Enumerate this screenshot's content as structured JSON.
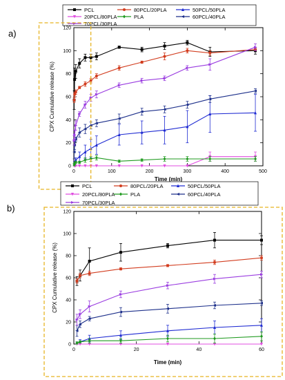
{
  "panel_letters": [
    "a)",
    "b)"
  ],
  "colors": {
    "highlight_box": "#e6b422",
    "PCL": "#000000",
    "80PCL/20PLA": "#d23c1e",
    "50PCL/50PLA": "#1e2ad2",
    "20PCL/80PLA": "#e04ce0",
    "PLA": "#1f9a1f",
    "60PCL/40PLA": "#1c2f8a",
    "70PCL/30PLA": "#9a3ce0"
  },
  "chart_data": [
    {
      "type": "line",
      "panel": "a)",
      "xlabel": "Time (min)",
      "ylabel": "CPX Cumulative release (%)",
      "xlim": [
        0,
        500
      ],
      "ylim": [
        0,
        120
      ],
      "xticks": [
        0,
        100,
        200,
        300,
        400,
        500
      ],
      "yticks": [
        0,
        20,
        40,
        60,
        80,
        100,
        120
      ],
      "legend": "top",
      "highlight_region": {
        "x": [
          -10,
          45
        ],
        "y": [
          -8,
          120
        ]
      },
      "series": [
        {
          "name": "PCL",
          "x": [
            1,
            2,
            5,
            15,
            30,
            45,
            60,
            120,
            180,
            240,
            300,
            360,
            480
          ],
          "y": [
            57,
            75,
            82,
            89,
            94,
            94,
            95,
            103,
            101,
            104,
            107,
            99,
            100
          ],
          "err": [
            8,
            10,
            6,
            4,
            3,
            3,
            3,
            1,
            2,
            3,
            2,
            4,
            3
          ]
        },
        {
          "name": "80PCL/20PLA",
          "x": [
            1,
            2,
            5,
            15,
            30,
            45,
            60,
            120,
            180,
            240,
            300,
            360,
            480
          ],
          "y": [
            57,
            62,
            64,
            68,
            71,
            74,
            78,
            85,
            90,
            95,
            100,
            98,
            101
          ],
          "err": [
            2,
            2,
            2,
            1,
            2,
            2,
            2,
            2,
            1,
            3,
            2,
            2,
            1
          ]
        },
        {
          "name": "50PCL/50PLA",
          "x": [
            1,
            2,
            5,
            15,
            30,
            45,
            60,
            120,
            180,
            240,
            300,
            360,
            480
          ],
          "y": [
            1,
            2,
            5,
            8,
            12,
            15,
            18,
            27,
            29,
            31,
            34,
            45,
            46
          ],
          "err": [
            1,
            2,
            2,
            4,
            6,
            8,
            8,
            9,
            10,
            12,
            14,
            16,
            16
          ]
        },
        {
          "name": "20PCL/80PLA",
          "x": [
            1,
            2,
            5,
            15,
            30,
            45,
            60,
            120,
            180,
            240,
            300,
            360,
            480
          ],
          "y": [
            0,
            0,
            0,
            0,
            0,
            0,
            0,
            0,
            0,
            0,
            0,
            8,
            8
          ],
          "err": [
            0,
            0,
            0,
            0,
            0,
            0,
            0,
            0,
            0,
            0,
            0,
            4,
            4
          ]
        },
        {
          "name": "PLA",
          "x": [
            1,
            2,
            5,
            15,
            30,
            45,
            60,
            120,
            180,
            240,
            300,
            360,
            480
          ],
          "y": [
            1,
            2,
            3,
            3,
            5,
            6,
            7,
            4,
            5,
            6,
            6,
            6,
            6
          ],
          "err": [
            1,
            1,
            1,
            1,
            2,
            2,
            2,
            1,
            1,
            2,
            2,
            2,
            2
          ]
        },
        {
          "name": "60PCL/40PLA",
          "x": [
            1,
            2,
            5,
            15,
            30,
            45,
            60,
            120,
            180,
            240,
            300,
            360,
            480
          ],
          "y": [
            12,
            18,
            23,
            29,
            32,
            35,
            37,
            41,
            47,
            49,
            53,
            58,
            65
          ],
          "err": [
            6,
            4,
            2,
            4,
            4,
            3,
            3,
            4,
            3,
            3,
            3,
            3,
            2
          ]
        },
        {
          "name": "70PCL/30PLA",
          "x": [
            1,
            2,
            5,
            15,
            30,
            45,
            60,
            120,
            180,
            240,
            300,
            360,
            480
          ],
          "y": [
            22,
            27,
            35,
            45,
            53,
            59,
            62,
            70,
            74,
            76,
            85,
            88,
            103
          ],
          "err": [
            4,
            4,
            4,
            2,
            3,
            3,
            3,
            2,
            2,
            2,
            2,
            5,
            3
          ]
        }
      ]
    },
    {
      "type": "line",
      "panel": "b)",
      "xlabel": "Time (min)",
      "ylabel": "CPX Cumulative release (%)",
      "xlim": [
        0,
        60
      ],
      "ylim": [
        0,
        120
      ],
      "xticks": [
        0,
        20,
        40,
        60
      ],
      "yticks": [
        0,
        20,
        40,
        60,
        80,
        100,
        120
      ],
      "legend": "top",
      "series": [
        {
          "name": "PCL",
          "x": [
            1,
            2,
            5,
            15,
            30,
            45,
            60
          ],
          "y": [
            57,
            62,
            75,
            83,
            89,
            94,
            94
          ],
          "err": [
            4,
            5,
            12,
            8,
            2,
            7,
            4
          ]
        },
        {
          "name": "80PCL/20PLA",
          "x": [
            1,
            2,
            5,
            15,
            30,
            45,
            60
          ],
          "y": [
            57,
            62,
            64,
            68,
            71,
            74,
            78
          ],
          "err": [
            2,
            2,
            2,
            1,
            1,
            2,
            2
          ]
        },
        {
          "name": "50PCL/50PLA",
          "x": [
            1,
            2,
            5,
            15,
            30,
            45,
            60
          ],
          "y": [
            1,
            2,
            5,
            8,
            12,
            15,
            17
          ],
          "err": [
            1,
            2,
            3,
            4,
            5,
            6,
            6
          ]
        },
        {
          "name": "20PCL/80PLA",
          "x": [
            1,
            2,
            5,
            15,
            30,
            45,
            60
          ],
          "y": [
            0,
            0,
            0,
            0,
            0,
            0,
            0
          ],
          "err": [
            0,
            0,
            0,
            0,
            0,
            0,
            0
          ]
        },
        {
          "name": "PLA",
          "x": [
            1,
            2,
            5,
            15,
            30,
            45,
            60
          ],
          "y": [
            1,
            2,
            3,
            3,
            5,
            5,
            7
          ],
          "err": [
            1,
            1,
            2,
            2,
            3,
            4,
            4
          ]
        },
        {
          "name": "60PCL/40PLA",
          "x": [
            1,
            2,
            5,
            15,
            30,
            45,
            60
          ],
          "y": [
            12,
            18,
            23,
            29,
            32,
            35,
            37
          ],
          "err": [
            5,
            3,
            2,
            4,
            4,
            3,
            2
          ]
        },
        {
          "name": "70PCL/30PLA",
          "x": [
            1,
            2,
            5,
            15,
            30,
            45,
            60
          ],
          "y": [
            22,
            27,
            34,
            45,
            53,
            59,
            63
          ],
          "err": [
            5,
            4,
            5,
            3,
            3,
            4,
            3
          ]
        }
      ]
    }
  ]
}
